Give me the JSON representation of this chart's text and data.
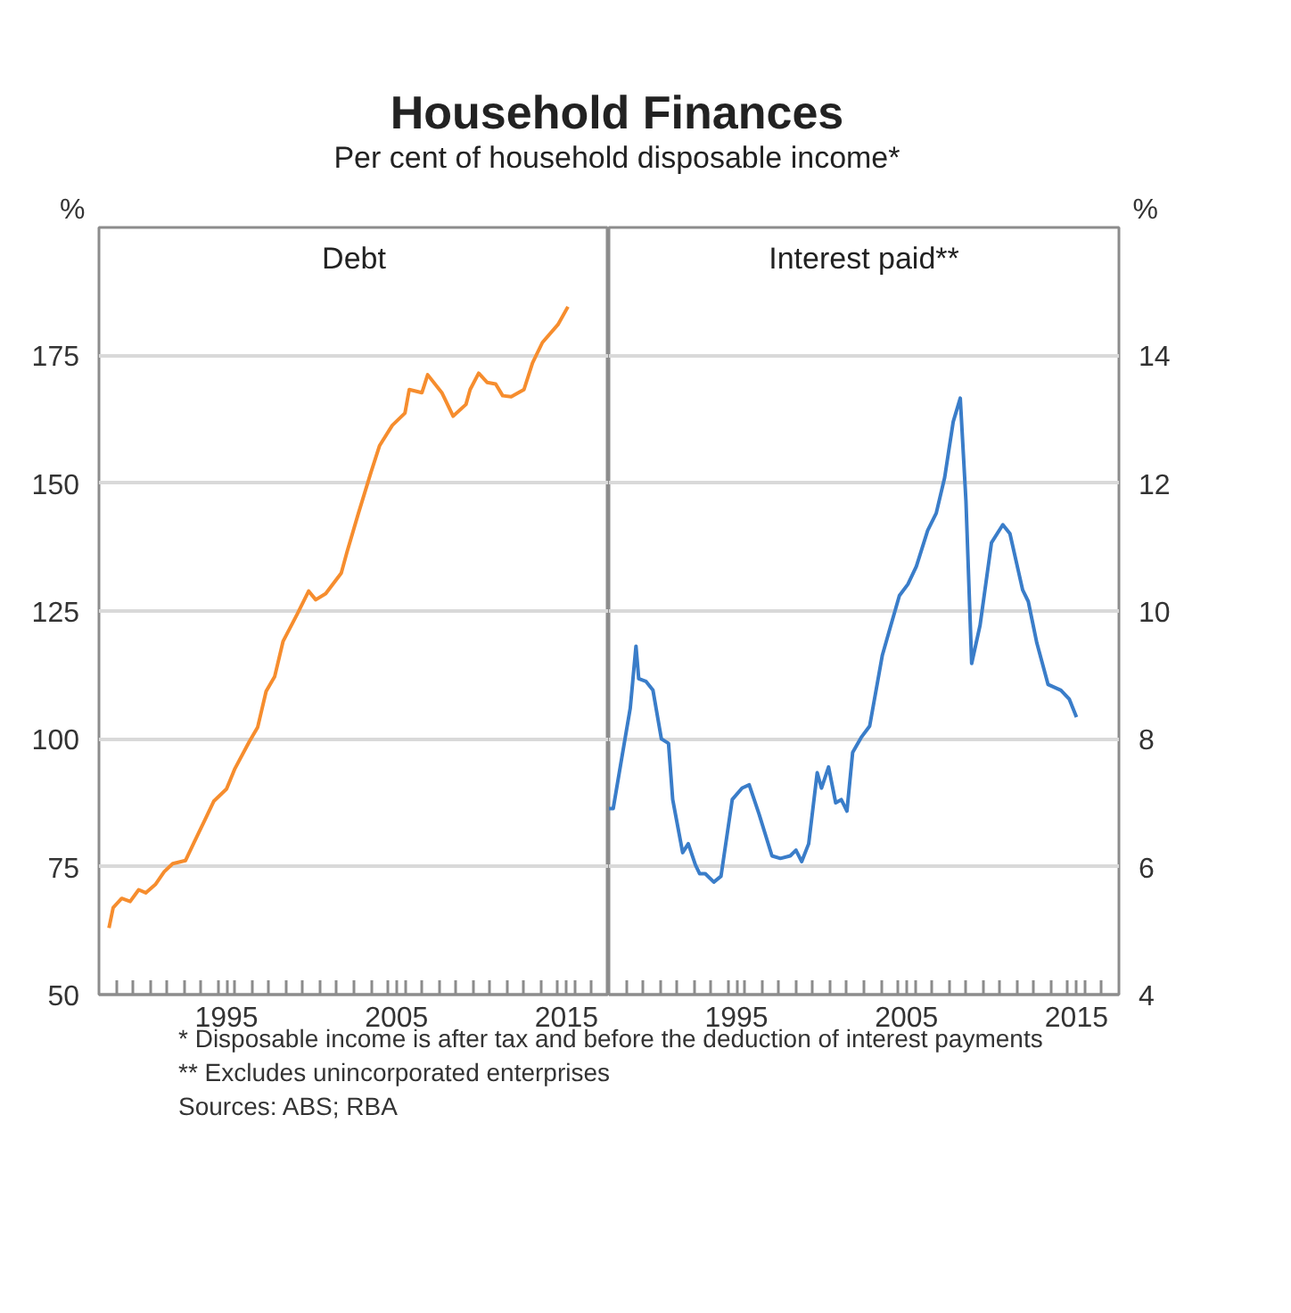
{
  "chart_data": [
    {
      "type": "line",
      "title": "Household Finances",
      "subtitle": "Per cent of household disposable income*",
      "ylabel": "%",
      "xlim": [
        "1987-07",
        "2017-07"
      ],
      "ylim": [
        50,
        200
      ],
      "yticks": [
        50,
        75,
        100,
        125,
        150,
        175
      ],
      "xticks": [
        {
          "value": "1988-07",
          "label": null
        },
        {
          "value": "1989-07",
          "label": null
        },
        {
          "value": "1990-07",
          "label": null
        },
        {
          "value": "1991-07",
          "label": null
        },
        {
          "value": "1992-07",
          "label": null
        },
        {
          "value": "1993-07",
          "label": null
        },
        {
          "value": "1994-07",
          "label": null
        },
        {
          "value": "1995-07",
          "label": null
        },
        {
          "value": "1996-07",
          "label": null
        },
        {
          "value": "1997-07",
          "label": null
        },
        {
          "value": "1998-07",
          "label": null
        },
        {
          "value": "1999-07",
          "label": null
        },
        {
          "value": "2000-07",
          "label": null
        },
        {
          "value": "2001-07",
          "label": null
        },
        {
          "value": "2002-07",
          "label": null
        },
        {
          "value": "2003-07",
          "label": null
        },
        {
          "value": "2004-07",
          "label": null
        },
        {
          "value": "2005-07",
          "label": null
        },
        {
          "value": "2006-07",
          "label": null
        },
        {
          "value": "2007-07",
          "label": null
        },
        {
          "value": "2008-07",
          "label": null
        },
        {
          "value": "2009-07",
          "label": null
        },
        {
          "value": "2010-07",
          "label": null
        },
        {
          "value": "2011-07",
          "label": null
        },
        {
          "value": "2012-07",
          "label": null
        },
        {
          "value": "2013-07",
          "label": null
        },
        {
          "value": "2014-07",
          "label": null
        },
        {
          "value": "2015-07",
          "label": null
        },
        {
          "value": "2016-07",
          "label": null
        },
        "1995",
        "2005",
        "2015"
      ],
      "grid": "y",
      "series": [
        {
          "name": "Debt",
          "color": "#f68d2e",
          "x": [
            "1988-02",
            "1988-05",
            "1988-11",
            "1989-05",
            "1989-11",
            "1990-04",
            "1990-11",
            "1991-05",
            "1991-11",
            "1992-08",
            "1993-02",
            "1993-10",
            "1994-04",
            "1995-01",
            "1995-07",
            "1996-05",
            "1996-11",
            "1997-05",
            "1997-11",
            "1998-05",
            "1999-03",
            "1999-11",
            "2000-04",
            "2000-11",
            "2001-10",
            "2002-02",
            "2002-10",
            "2003-07",
            "2004-01",
            "2004-10",
            "2005-07",
            "2005-10",
            "2006-07",
            "2006-11",
            "2007-09",
            "2008-05",
            "2009-02",
            "2009-05",
            "2009-11",
            "2010-05",
            "2010-11",
            "2011-04",
            "2011-10",
            "2012-07",
            "2013-01",
            "2013-08",
            "2014-07",
            "2015-02"
          ],
          "values": [
            63,
            67,
            68.8,
            68.2,
            70.5,
            69.9,
            71.6,
            74,
            75.6,
            76.2,
            79.7,
            84.3,
            87.8,
            90.2,
            94.2,
            99.4,
            102.3,
            109.3,
            112.2,
            119.1,
            124.4,
            128.9,
            127.2,
            128.4,
            132.4,
            136.5,
            144,
            152.1,
            157.3,
            161.3,
            163.7,
            168.3,
            167.7,
            171.2,
            167.7,
            163.1,
            165.4,
            168.3,
            171.5,
            169.7,
            169.4,
            167.1,
            166.9,
            168.3,
            173.5,
            177.5,
            181,
            184.5
          ]
        }
      ]
    },
    {
      "type": "line",
      "y2label": "%",
      "xlim": [
        "1987-07",
        "2017-07"
      ],
      "y2lim": [
        4,
        16
      ],
      "y2ticks": [
        4,
        6,
        8,
        10,
        12,
        14
      ],
      "xticks": [
        {
          "value": "1988-07",
          "label": null
        },
        {
          "value": "1989-07",
          "label": null
        },
        {
          "value": "1990-07",
          "label": null
        },
        {
          "value": "1991-07",
          "label": null
        },
        {
          "value": "1992-07",
          "label": null
        },
        {
          "value": "1993-07",
          "label": null
        },
        {
          "value": "1994-07",
          "label": null
        },
        {
          "value": "1995-07",
          "label": null
        },
        {
          "value": "1996-07",
          "label": null
        },
        {
          "value": "1997-07",
          "label": null
        },
        {
          "value": "1998-07",
          "label": null
        },
        {
          "value": "1999-07",
          "label": null
        },
        {
          "value": "2000-07",
          "label": null
        },
        {
          "value": "2001-07",
          "label": null
        },
        {
          "value": "2002-07",
          "label": null
        },
        {
          "value": "2003-07",
          "label": null
        },
        {
          "value": "2004-07",
          "label": null
        },
        {
          "value": "2005-07",
          "label": null
        },
        {
          "value": "2006-07",
          "label": null
        },
        {
          "value": "2007-07",
          "label": null
        },
        {
          "value": "2008-07",
          "label": null
        },
        {
          "value": "2009-07",
          "label": null
        },
        {
          "value": "2010-07",
          "label": null
        },
        {
          "value": "2011-07",
          "label": null
        },
        {
          "value": "2012-07",
          "label": null
        },
        {
          "value": "2013-07",
          "label": null
        },
        {
          "value": "2014-07",
          "label": null
        },
        {
          "value": "2015-07",
          "label": null
        },
        {
          "value": "2016-07",
          "label": null
        },
        "1995",
        "2005",
        "2015"
      ],
      "grid": "y",
      "annotations": [
        "* Disposable income is after tax and before the deduction of interest payments",
        "** Excludes unincorporated enterprises",
        "Sources: ABS; RBA"
      ],
      "series": [
        {
          "name": "Interest paid**",
          "color": "#3a7dc9",
          "axis": "y2",
          "x": [
            "1987-07",
            "1987-10",
            "1988-04",
            "1988-10",
            "1989-02",
            "1989-04",
            "1989-09",
            "1990-02",
            "1990-08",
            "1991-01",
            "1991-04",
            "1991-11",
            "1992-03",
            "1992-08",
            "1992-11",
            "1993-03",
            "1993-09",
            "1994-02",
            "1994-10",
            "1995-05",
            "1995-10",
            "1996-05",
            "1997-02",
            "1997-08",
            "1998-03",
            "1998-07",
            "1998-11",
            "1999-04",
            "1999-10",
            "2000-01",
            "2000-06",
            "2000-11",
            "2001-03",
            "2001-07",
            "2001-11",
            "2002-05",
            "2002-11",
            "2003-08",
            "2004-02",
            "2004-08",
            "2005-02",
            "2005-08",
            "2006-04",
            "2006-10",
            "2007-04",
            "2007-10",
            "2008-03",
            "2008-07",
            "2008-11",
            "2009-05",
            "2010-01",
            "2010-09",
            "2011-02",
            "2011-11",
            "2012-03",
            "2012-09",
            "2013-05",
            "2014-02",
            "2014-08",
            "2015-01"
          ],
          "values": [
            6.91,
            6.91,
            7.7,
            8.48,
            9.45,
            8.94,
            8.9,
            8.76,
            8.0,
            7.93,
            7.05,
            6.22,
            6.36,
            6.03,
            5.89,
            5.89,
            5.76,
            5.85,
            7.05,
            7.23,
            7.28,
            6.82,
            6.17,
            6.13,
            6.17,
            6.26,
            6.08,
            6.36,
            7.47,
            7.23,
            7.56,
            7.0,
            7.05,
            6.87,
            7.79,
            8.02,
            8.2,
            9.31,
            9.78,
            10.24,
            10.42,
            10.7,
            11.26,
            11.53,
            12.09,
            12.96,
            13.33,
            11.72,
            9.18,
            9.78,
            11.07,
            11.35,
            11.21,
            10.33,
            10.15,
            9.5,
            8.85,
            8.76,
            8.62,
            8.34
          ]
        }
      ]
    }
  ]
}
